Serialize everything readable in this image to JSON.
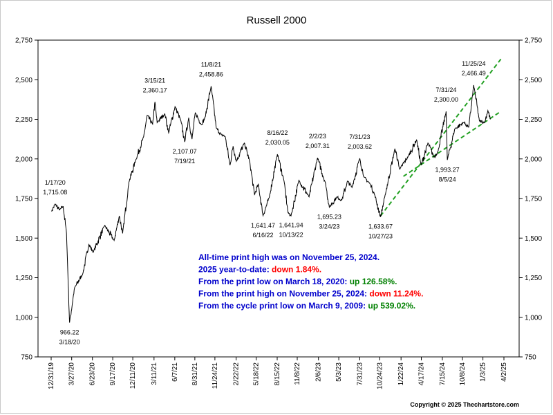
{
  "chart_data": {
    "type": "line",
    "title": "Russell 2000",
    "xlabel": "",
    "ylabel": "",
    "ylim": [
      750,
      2750
    ],
    "yticks": [
      750,
      1000,
      1250,
      1500,
      1750,
      2000,
      2250,
      2500,
      2750
    ],
    "ytick_labels": [
      "750",
      "1,000",
      "1,250",
      "1,500",
      "1,750",
      "2,000",
      "2,250",
      "2,500",
      "2,750"
    ],
    "xlim": [
      "2019-12-31",
      "2025-04-02"
    ],
    "xtick_labels": [
      "12/31/19",
      "3/27/20",
      "6/23/20",
      "9/17/20",
      "12/11/20",
      "3/11/21",
      "6/7/21",
      "8/31/21",
      "11/24/21",
      "2/22/22",
      "5/18/22",
      "8/15/22",
      "11/8/22",
      "2/6/23",
      "5/3/23",
      "7/31/23",
      "10/24/23",
      "1/22/24",
      "4/17/24",
      "7/15/24",
      "10/8/24",
      "1/3/25",
      "4/2/25"
    ],
    "xtick_dates": [
      "2019-12-31",
      "2020-03-27",
      "2020-06-23",
      "2020-09-17",
      "2020-12-11",
      "2021-03-11",
      "2021-06-07",
      "2021-08-31",
      "2021-11-24",
      "2022-02-22",
      "2022-05-18",
      "2022-08-15",
      "2022-11-08",
      "2023-02-06",
      "2023-05-03",
      "2023-07-31",
      "2023-10-24",
      "2024-01-22",
      "2024-04-17",
      "2024-07-15",
      "2024-10-08",
      "2025-01-03",
      "2025-04-02"
    ],
    "grid": false,
    "series": [
      {
        "color": "#000000",
        "x": [
          "2020-01-02",
          "2020-01-17",
          "2020-02-05",
          "2020-02-20",
          "2020-03-05",
          "2020-03-18",
          "2020-04-08",
          "2020-05-13",
          "2020-06-08",
          "2020-06-26",
          "2020-08-14",
          "2020-09-23",
          "2020-10-15",
          "2020-10-29",
          "2020-11-25",
          "2020-12-23",
          "2021-01-26",
          "2021-02-10",
          "2021-03-05",
          "2021-03-15",
          "2021-03-24",
          "2021-04-26",
          "2021-05-12",
          "2021-06-08",
          "2021-07-02",
          "2021-07-19",
          "2021-08-05",
          "2021-08-19",
          "2021-09-02",
          "2021-09-28",
          "2021-10-14",
          "2021-11-08",
          "2021-11-30",
          "2021-12-20",
          "2022-01-07",
          "2022-01-27",
          "2022-02-09",
          "2022-02-23",
          "2022-03-29",
          "2022-04-20",
          "2022-05-11",
          "2022-05-27",
          "2022-06-16",
          "2022-07-12",
          "2022-08-16",
          "2022-09-13",
          "2022-09-30",
          "2022-10-13",
          "2022-11-15",
          "2022-12-28",
          "2023-02-02",
          "2023-03-08",
          "2023-03-24",
          "2023-04-25",
          "2023-05-16",
          "2023-06-09",
          "2023-06-28",
          "2023-07-31",
          "2023-08-18",
          "2023-09-14",
          "2023-10-03",
          "2023-10-27",
          "2023-11-14",
          "2023-12-27",
          "2024-01-17",
          "2024-02-21",
          "2024-03-28",
          "2024-04-16",
          "2024-05-15",
          "2024-06-10",
          "2024-06-27",
          "2024-07-31",
          "2024-08-05",
          "2024-09-06",
          "2024-10-14",
          "2024-11-04",
          "2024-11-25",
          "2024-12-19",
          "2025-01-10",
          "2025-01-24",
          "2025-02-04"
        ],
        "values": [
          1668,
          1715.08,
          1678,
          1700,
          1530,
          966.22,
          1185,
          1275,
          1460,
          1410,
          1580,
          1485,
          1640,
          1530,
          1855,
          1990,
          2140,
          2275,
          2220,
          2360.17,
          2230,
          2285,
          2165,
          2330,
          2245,
          2107.07,
          2260,
          2125,
          2290,
          2215,
          2265,
          2458.86,
          2195,
          2155,
          2140,
          1960,
          2080,
          1985,
          2100,
          1985,
          1775,
          1840,
          1641.47,
          1755,
          2030.05,
          1860,
          1660,
          1641.94,
          1865,
          1760,
          2007.31,
          1845,
          1695.23,
          1760,
          1740,
          1860,
          1820,
          2003.62,
          1885,
          1840,
          1770,
          1633.67,
          1760,
          2065,
          1935,
          2015,
          2120,
          1960,
          2100,
          2010,
          2050,
          2300.0,
          1993.27,
          2190,
          2230,
          2200,
          2466.49,
          2240,
          2230,
          2305,
          2250
        ]
      }
    ],
    "annotations": [
      {
        "date": "1/17/20",
        "value": "1,715.08",
        "x": "2020-01-17",
        "y": 1715.08,
        "pos": "above"
      },
      {
        "date": "3/18/20",
        "value": "966.22",
        "x": "2020-03-18",
        "y": 966.22,
        "pos": "below"
      },
      {
        "date": "3/15/21",
        "value": "2,360.17",
        "x": "2021-03-15",
        "y": 2360.17,
        "pos": "above"
      },
      {
        "date": "7/19/21",
        "value": "2,107.07",
        "x": "2021-07-19",
        "y": 2107.07,
        "pos": "below"
      },
      {
        "date": "11/8/21",
        "value": "2,458.86",
        "x": "2021-11-08",
        "y": 2458.86,
        "pos": "above"
      },
      {
        "date": "6/16/22",
        "value": "1,641.47",
        "x": "2022-06-16",
        "y": 1641.47,
        "pos": "below"
      },
      {
        "date": "8/16/22",
        "value": "2,030.05",
        "x": "2022-08-16",
        "y": 2030.05,
        "pos": "above"
      },
      {
        "date": "10/13/22",
        "value": "1,641.94",
        "x": "2022-10-13",
        "y": 1641.94,
        "pos": "below"
      },
      {
        "date": "2/2/23",
        "value": "2,007.31",
        "x": "2023-02-02",
        "y": 2007.31,
        "pos": "above"
      },
      {
        "date": "3/24/23",
        "value": "1,695.23",
        "x": "2023-03-24",
        "y": 1695.23,
        "pos": "below"
      },
      {
        "date": "7/31/23",
        "value": "2,003.62",
        "x": "2023-07-31",
        "y": 2003.62,
        "pos": "above"
      },
      {
        "date": "10/27/23",
        "value": "1,633.67",
        "x": "2023-10-27",
        "y": 1633.67,
        "pos": "below"
      },
      {
        "date": "7/31/24",
        "value": "2,300.00",
        "x": "2024-07-31",
        "y": 2300.0,
        "pos": "above"
      },
      {
        "date": "8/5/24",
        "value": "1,993.27",
        "x": "2024-08-05",
        "y": 1993.27,
        "pos": "below"
      },
      {
        "date": "11/25/24",
        "value": "2,466.49",
        "x": "2024-11-25",
        "y": 2466.49,
        "pos": "above"
      }
    ],
    "trend_channel": {
      "color": "#22a022",
      "lines": [
        {
          "x": [
            "2023-10-27",
            "2025-03-20"
          ],
          "y": [
            1640,
            2630
          ]
        },
        {
          "x": [
            "2024-02-01",
            "2025-03-20"
          ],
          "y": [
            1890,
            2300
          ]
        }
      ]
    },
    "notes": [
      {
        "parts": [
          {
            "text": "All-time print high was on November 25, 2024.",
            "color": "#0000cc"
          }
        ]
      },
      {
        "parts": [
          {
            "text": "2025 year-to-date: ",
            "color": "#0000cc"
          },
          {
            "text": "down 1.84%.",
            "color": "#ff0000"
          }
        ]
      },
      {
        "parts": [
          {
            "text": "From the print low on March 18, 2020:  ",
            "color": "#0000cc"
          },
          {
            "text": "up 126.58%.",
            "color": "#008000"
          }
        ]
      },
      {
        "parts": [
          {
            "text": "From the print high on November 25, 2024:  ",
            "color": "#0000cc"
          },
          {
            "text": "down 11.24%.",
            "color": "#ff0000"
          }
        ]
      },
      {
        "parts": [
          {
            "text": "From the cycle print low on March 9, 2009:  ",
            "color": "#0000cc"
          },
          {
            "text": "up 539.02%.",
            "color": "#008000"
          }
        ]
      }
    ],
    "copyright": "Copyright © 2025 Thechartstore.com"
  }
}
